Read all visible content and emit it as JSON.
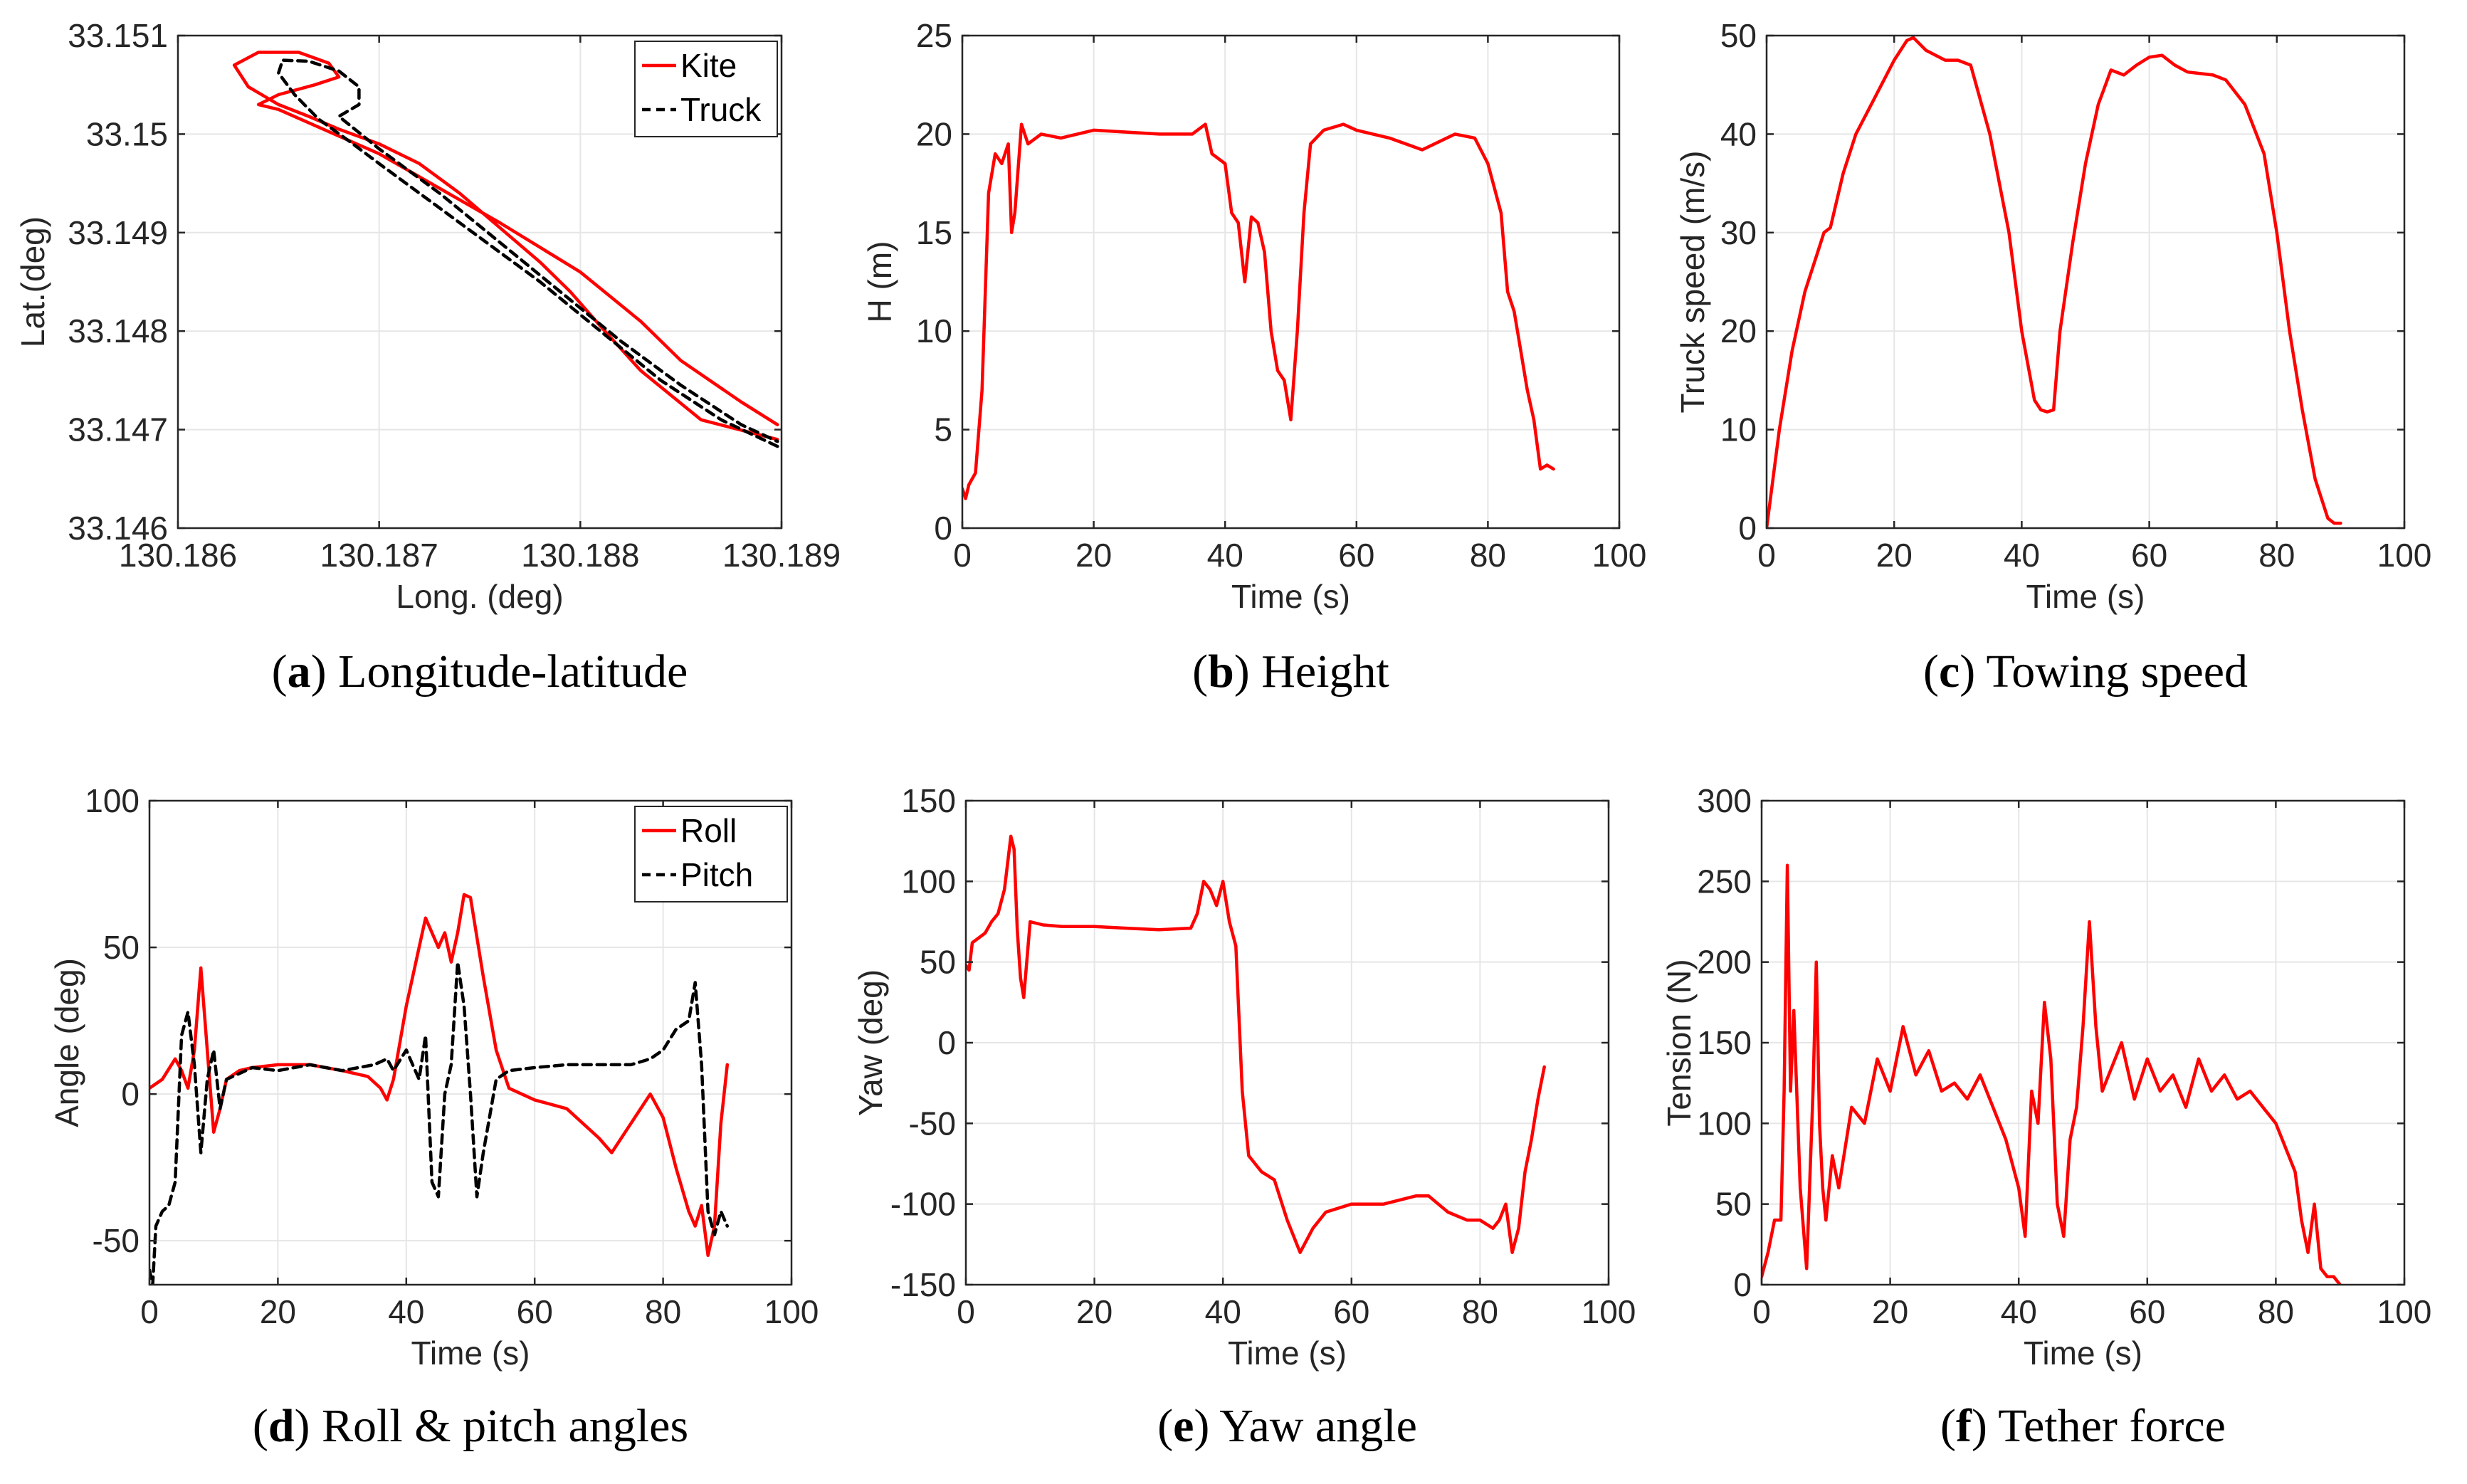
{
  "chart_data": [
    {
      "id": "a",
      "type": "line",
      "caption_letter": "a",
      "caption_text": "Longitude-latitude",
      "xlabel": "Long. (deg)",
      "ylabel": "Lat.(deg)",
      "xlim": [
        130.186,
        130.189
      ],
      "ylim": [
        33.146,
        33.151
      ],
      "xticks": [
        130.186,
        130.187,
        130.188,
        130.189
      ],
      "xtick_labels": [
        "130.186",
        "130.187",
        "130.188",
        "130.189"
      ],
      "yticks": [
        33.146,
        33.147,
        33.148,
        33.149,
        33.15,
        33.151
      ],
      "ytick_labels": [
        "33.146",
        "33.147",
        "33.148",
        "33.149",
        "33.15",
        "33.151"
      ],
      "grid": true,
      "legend": "top-right",
      "series": [
        {
          "name": "Kite",
          "color": "#ff0000",
          "style": "solid",
          "x": [
            130.18898,
            130.1886,
            130.1883,
            130.1881,
            130.18795,
            130.1878,
            130.1876,
            130.1874,
            130.1872,
            130.187,
            130.1868,
            130.18665,
            130.1865,
            130.18635,
            130.18628,
            130.1864,
            130.1866,
            130.18675,
            130.1868,
            130.18668,
            130.1865,
            130.1864,
            130.1865,
            130.187,
            130.1876,
            130.188,
            130.1883,
            130.1885,
            130.1888,
            130.18898
          ],
          "y": [
            33.1469,
            33.1471,
            33.1476,
            33.14805,
            33.1484,
            33.1487,
            33.14905,
            33.1494,
            33.1497,
            33.1499,
            33.15005,
            33.15018,
            33.1503,
            33.15048,
            33.1507,
            33.15083,
            33.15083,
            33.15072,
            33.15058,
            33.1505,
            33.1504,
            33.1503,
            33.15025,
            33.1498,
            33.1491,
            33.1486,
            33.1481,
            33.1477,
            33.14728,
            33.14705
          ]
        },
        {
          "name": "Truck",
          "color": "#000000",
          "style": "dashed",
          "x": [
            130.18898,
            130.1887,
            130.1884,
            130.1881,
            130.1878,
            130.1875,
            130.1872,
            130.187,
            130.18685,
            130.1867,
            130.18658,
            130.1865,
            130.18652,
            130.18665,
            130.1868,
            130.1869,
            130.1869,
            130.1868,
            130.187,
            130.1873,
            130.1876,
            130.1879,
            130.1882,
            130.1885,
            130.1888,
            130.18898
          ],
          "y": [
            33.14683,
            33.1471,
            33.1475,
            33.148,
            33.1485,
            33.14895,
            33.1494,
            33.1497,
            33.14993,
            33.15015,
            33.1504,
            33.15062,
            33.15075,
            33.15074,
            33.15064,
            33.15048,
            33.1503,
            33.15018,
            33.14985,
            33.1494,
            33.1489,
            33.1484,
            33.1479,
            33.14745,
            33.14705,
            33.14688
          ]
        }
      ]
    },
    {
      "id": "b",
      "type": "line",
      "caption_letter": "b",
      "caption_text": "Height",
      "xlabel": "Time (s)",
      "ylabel": "H (m)",
      "xlim": [
        0,
        100
      ],
      "ylim": [
        0,
        25
      ],
      "xticks": [
        0,
        20,
        40,
        60,
        80,
        100
      ],
      "xtick_labels": [
        "0",
        "20",
        "40",
        "60",
        "80",
        "100"
      ],
      "yticks": [
        0,
        5,
        10,
        15,
        20,
        25
      ],
      "ytick_labels": [
        "0",
        "5",
        "10",
        "15",
        "20",
        "25"
      ],
      "grid": true,
      "series": [
        {
          "name": "H",
          "color": "#ff0000",
          "x": [
            0,
            0.5,
            1,
            2,
            3,
            3.5,
            4,
            5,
            6,
            7,
            7.5,
            8,
            9,
            10,
            12,
            15,
            20,
            25,
            30,
            35,
            37,
            38,
            40,
            41,
            42,
            43,
            44,
            45,
            46,
            47,
            48,
            49,
            50,
            51,
            52,
            53,
            55,
            58,
            60,
            65,
            70,
            75,
            78,
            80,
            82,
            83,
            84,
            85,
            86,
            87,
            88,
            89,
            90
          ],
          "y": [
            2,
            1.5,
            2.2,
            2.8,
            7,
            12,
            17,
            19,
            18.5,
            19.5,
            15,
            16,
            20.5,
            19.5,
            20,
            19.8,
            20.2,
            20.1,
            20,
            20,
            20.5,
            19,
            18.5,
            16,
            15.5,
            12.5,
            15.8,
            15.5,
            14,
            10,
            8,
            7.5,
            5.5,
            10,
            16,
            19.5,
            20.2,
            20.5,
            20.2,
            19.8,
            19.2,
            20,
            19.8,
            18.5,
            16,
            12,
            11,
            9,
            7,
            5.5,
            3,
            3.2,
            3
          ]
        }
      ]
    },
    {
      "id": "c",
      "type": "line",
      "caption_letter": "c",
      "caption_text": "Towing speed",
      "xlabel": "Time (s)",
      "ylabel": "Truck speed (m/s)",
      "xlim": [
        0,
        100
      ],
      "ylim": [
        0,
        50
      ],
      "xticks": [
        0,
        20,
        40,
        60,
        80,
        100
      ],
      "xtick_labels": [
        "0",
        "20",
        "40",
        "60",
        "80",
        "100"
      ],
      "yticks": [
        0,
        10,
        20,
        30,
        40,
        50
      ],
      "ytick_labels": [
        "0",
        "10",
        "20",
        "30",
        "40",
        "50"
      ],
      "grid": true,
      "series": [
        {
          "name": "Truck speed",
          "color": "#ff0000",
          "x": [
            0,
            2,
            4,
            6,
            8,
            9,
            10,
            12,
            14,
            16,
            18,
            20,
            22,
            23,
            25,
            28,
            30,
            32,
            35,
            38,
            40,
            42,
            43,
            44,
            45,
            46,
            48,
            50,
            52,
            54,
            56,
            58,
            60,
            62,
            64,
            66,
            70,
            72,
            75,
            78,
            80,
            82,
            84,
            86,
            88,
            89,
            90
          ],
          "y": [
            0,
            10,
            18,
            24,
            28,
            30,
            30.5,
            36,
            40,
            42.5,
            45,
            47.5,
            49.5,
            49.8,
            48.5,
            47.5,
            47.5,
            47,
            40,
            30,
            20,
            13,
            12,
            11.8,
            12,
            20,
            29,
            37,
            43,
            46.5,
            46,
            47,
            47.8,
            48,
            47,
            46.3,
            46,
            45.5,
            43,
            38,
            30,
            20,
            12,
            5,
            1,
            0.5,
            0.5
          ]
        }
      ]
    },
    {
      "id": "d",
      "type": "line",
      "caption_letter": "d",
      "caption_text": "Roll & pitch angles",
      "xlabel": "Time (s)",
      "ylabel": "Angle (deg)",
      "xlim": [
        0,
        100
      ],
      "ylim": [
        -65,
        100
      ],
      "xticks": [
        0,
        20,
        40,
        60,
        80,
        100
      ],
      "xtick_labels": [
        "0",
        "20",
        "40",
        "60",
        "80",
        "100"
      ],
      "yticks": [
        -50,
        0,
        50,
        100
      ],
      "ytick_labels": [
        "-50",
        "0",
        "50",
        "100"
      ],
      "grid": true,
      "legend": "top-right",
      "series": [
        {
          "name": "Roll",
          "color": "#ff0000",
          "style": "solid",
          "x": [
            0,
            2,
            4,
            5,
            6,
            7,
            8,
            9,
            10,
            11,
            12,
            14,
            16,
            20,
            25,
            30,
            34,
            36,
            37,
            38,
            40,
            42,
            43,
            44,
            45,
            46,
            47,
            48,
            49,
            50,
            52,
            54,
            56,
            60,
            65,
            70,
            72,
            75,
            78,
            80,
            82,
            84,
            85,
            86,
            87,
            88,
            89,
            90
          ],
          "y": [
            2,
            5,
            12,
            8,
            2,
            15,
            43,
            15,
            -13,
            -5,
            5,
            8,
            9,
            10,
            10,
            8,
            6,
            2,
            -2,
            5,
            30,
            50,
            60,
            55,
            50,
            55,
            45,
            55,
            68,
            67,
            40,
            15,
            2,
            -2,
            -5,
            -15,
            -20,
            -10,
            0,
            -8,
            -25,
            -40,
            -45,
            -38,
            -55,
            -45,
            -10,
            10
          ]
        },
        {
          "name": "Pitch",
          "color": "#000000",
          "style": "dashed",
          "x": [
            0,
            0.5,
            1,
            2,
            3,
            4,
            5,
            6,
            7,
            8,
            9,
            10,
            11,
            12,
            14,
            16,
            20,
            25,
            30,
            35,
            37,
            38,
            40,
            42,
            43,
            44,
            45,
            46,
            47,
            48,
            49,
            50,
            51,
            52,
            54,
            56,
            60,
            65,
            70,
            75,
            78,
            80,
            82,
            84,
            85,
            86,
            87,
            88,
            89,
            90
          ],
          "y": [
            -60,
            -65,
            -45,
            -40,
            -38,
            -30,
            20,
            28,
            10,
            -20,
            5,
            15,
            -5,
            5,
            7,
            9,
            8,
            10,
            8,
            10,
            12,
            8,
            15,
            5,
            20,
            -30,
            -35,
            0,
            10,
            45,
            30,
            0,
            -35,
            -20,
            5,
            8,
            9,
            10,
            10,
            10,
            12,
            15,
            22,
            25,
            38,
            10,
            -40,
            -48,
            -40,
            -45
          ]
        }
      ]
    },
    {
      "id": "e",
      "type": "line",
      "caption_letter": "e",
      "caption_text": "Yaw angle",
      "xlabel": "Time (s)",
      "ylabel": "Yaw (deg)",
      "xlim": [
        0,
        100
      ],
      "ylim": [
        -150,
        150
      ],
      "xticks": [
        0,
        20,
        40,
        60,
        80,
        100
      ],
      "xtick_labels": [
        "0",
        "20",
        "40",
        "60",
        "80",
        "100"
      ],
      "yticks": [
        -150,
        -100,
        -50,
        0,
        50,
        100,
        150
      ],
      "ytick_labels": [
        "-150",
        "-100",
        "-50",
        "0",
        "50",
        "100",
        "150"
      ],
      "grid": true,
      "series": [
        {
          "name": "Yaw",
          "color": "#ff0000",
          "x": [
            0,
            0.5,
            1,
            2,
            3,
            4,
            5,
            6,
            7,
            7.5,
            8,
            8.5,
            9,
            10,
            12,
            15,
            20,
            25,
            30,
            35,
            36,
            37,
            38,
            39,
            40,
            41,
            42,
            43,
            44,
            45,
            46,
            48,
            50,
            52,
            54,
            56,
            60,
            65,
            70,
            72,
            75,
            78,
            80,
            82,
            83,
            84,
            85,
            86,
            87,
            88,
            89,
            90
          ],
          "y": [
            48,
            45,
            62,
            65,
            68,
            75,
            80,
            95,
            128,
            120,
            70,
            40,
            28,
            75,
            73,
            72,
            72,
            71,
            70,
            71,
            80,
            100,
            95,
            85,
            100,
            75,
            60,
            -30,
            -70,
            -75,
            -80,
            -85,
            -110,
            -130,
            -115,
            -105,
            -100,
            -100,
            -95,
            -95,
            -105,
            -110,
            -110,
            -115,
            -110,
            -100,
            -130,
            -115,
            -80,
            -60,
            -35,
            -15
          ]
        }
      ]
    },
    {
      "id": "f",
      "type": "line",
      "caption_letter": "f",
      "caption_text": "Tether force",
      "xlabel": "Time (s)",
      "ylabel": "Tension (N)",
      "xlim": [
        0,
        100
      ],
      "ylim": [
        0,
        300
      ],
      "xticks": [
        0,
        20,
        40,
        60,
        80,
        100
      ],
      "xtick_labels": [
        "0",
        "20",
        "40",
        "60",
        "80",
        "100"
      ],
      "yticks": [
        0,
        50,
        100,
        150,
        200,
        250,
        300
      ],
      "ytick_labels": [
        "0",
        "50",
        "100",
        "150",
        "200",
        "250",
        "300"
      ],
      "grid": true,
      "series": [
        {
          "name": "Tension",
          "color": "#ff0000",
          "x": [
            0,
            1,
            2,
            3,
            3.5,
            4,
            4.5,
            5,
            6,
            7,
            8,
            8.5,
            9,
            9.5,
            10,
            11,
            12,
            14,
            16,
            18,
            20,
            22,
            24,
            26,
            28,
            30,
            32,
            34,
            36,
            38,
            40,
            41,
            42,
            43,
            44,
            45,
            46,
            47,
            48,
            49,
            50,
            51,
            52,
            53,
            54,
            56,
            58,
            60,
            62,
            64,
            66,
            68,
            70,
            72,
            74,
            76,
            78,
            80,
            82,
            83,
            84,
            85,
            86,
            87,
            88,
            89,
            90
          ],
          "y": [
            5,
            20,
            40,
            40,
            120,
            260,
            120,
            170,
            60,
            10,
            120,
            200,
            100,
            60,
            40,
            80,
            60,
            110,
            100,
            140,
            120,
            160,
            130,
            145,
            120,
            125,
            115,
            130,
            110,
            90,
            60,
            30,
            120,
            100,
            175,
            140,
            50,
            30,
            90,
            110,
            160,
            225,
            160,
            120,
            130,
            150,
            115,
            140,
            120,
            130,
            110,
            140,
            120,
            130,
            115,
            120,
            110,
            100,
            80,
            70,
            40,
            20,
            50,
            10,
            5,
            5,
            0
          ]
        }
      ]
    }
  ]
}
